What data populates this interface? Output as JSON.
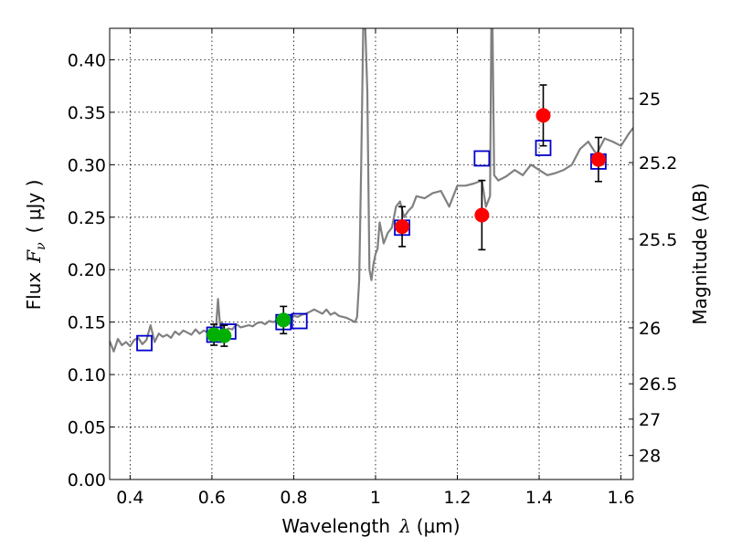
{
  "chart_data": {
    "type": "scatter",
    "xlabel_prefix": "Wavelength",
    "xlabel_symbol": "λ",
    "xlabel_unit": "(μm)",
    "ylabel_prefix": "Flux",
    "ylabel_symbol": "F",
    "ylabel_subscript": "ν",
    "ylabel_unit": "( μJy )",
    "y2label": "Magnitude (AB)",
    "xlim": [
      0.35,
      1.63
    ],
    "ylim": [
      0.0,
      0.43
    ],
    "xticks": [
      0.4,
      0.6,
      0.8,
      1.0,
      1.2,
      1.4,
      1.6
    ],
    "xtick_labels": [
      "0.4",
      "0.6",
      "0.8",
      "1",
      "1.2",
      "1.4",
      "1.6"
    ],
    "yticks": [
      0.0,
      0.05,
      0.1,
      0.15,
      0.2,
      0.25,
      0.3,
      0.35,
      0.4
    ],
    "ytick_labels": [
      "0.00",
      "0.05",
      "0.10",
      "0.15",
      "0.20",
      "0.25",
      "0.30",
      "0.35",
      "0.40"
    ],
    "y2ticks": [
      25,
      25.2,
      25.5,
      26,
      26.5,
      27,
      28
    ],
    "y2tick_labels": [
      "25",
      "25.2",
      "25.5",
      "26",
      "26.5",
      "27",
      "28"
    ],
    "mag_zeropoint": 23.9,
    "grid": true,
    "series": [
      {
        "name": "template spectrum",
        "kind": "line",
        "color": "#808080",
        "x": [
          0.35,
          0.36,
          0.37,
          0.38,
          0.39,
          0.4,
          0.41,
          0.42,
          0.43,
          0.44,
          0.45,
          0.46,
          0.47,
          0.48,
          0.49,
          0.5,
          0.51,
          0.52,
          0.53,
          0.54,
          0.55,
          0.56,
          0.57,
          0.58,
          0.59,
          0.6,
          0.61,
          0.615,
          0.62,
          0.625,
          0.63,
          0.64,
          0.65,
          0.66,
          0.67,
          0.68,
          0.69,
          0.7,
          0.71,
          0.72,
          0.73,
          0.74,
          0.75,
          0.76,
          0.77,
          0.78,
          0.79,
          0.8,
          0.81,
          0.82,
          0.83,
          0.84,
          0.85,
          0.86,
          0.87,
          0.88,
          0.89,
          0.9,
          0.91,
          0.92,
          0.93,
          0.94,
          0.95,
          0.955,
          0.96,
          0.965,
          0.97,
          0.975,
          0.98,
          0.985,
          0.99,
          0.995,
          1.0,
          1.005,
          1.01,
          1.02,
          1.03,
          1.04,
          1.05,
          1.06,
          1.07,
          1.08,
          1.09,
          1.1,
          1.12,
          1.14,
          1.16,
          1.18,
          1.2,
          1.22,
          1.24,
          1.26,
          1.27,
          1.28,
          1.283,
          1.286,
          1.29,
          1.3,
          1.32,
          1.34,
          1.36,
          1.38,
          1.4,
          1.42,
          1.44,
          1.46,
          1.48,
          1.5,
          1.52,
          1.54,
          1.56,
          1.58,
          1.6,
          1.62,
          1.63
        ],
        "y": [
          0.132,
          0.122,
          0.134,
          0.128,
          0.131,
          0.127,
          0.133,
          0.135,
          0.129,
          0.133,
          0.147,
          0.131,
          0.139,
          0.136,
          0.138,
          0.135,
          0.141,
          0.138,
          0.142,
          0.14,
          0.138,
          0.143,
          0.139,
          0.142,
          0.14,
          0.142,
          0.145,
          0.172,
          0.146,
          0.15,
          0.141,
          0.144,
          0.143,
          0.148,
          0.145,
          0.146,
          0.147,
          0.146,
          0.149,
          0.15,
          0.148,
          0.151,
          0.15,
          0.152,
          0.152,
          0.155,
          0.153,
          0.156,
          0.155,
          0.157,
          0.158,
          0.16,
          0.162,
          0.16,
          0.158,
          0.162,
          0.157,
          0.159,
          0.156,
          0.155,
          0.154,
          0.152,
          0.15,
          0.155,
          0.19,
          0.3,
          0.43,
          0.43,
          0.37,
          0.2,
          0.19,
          0.205,
          0.215,
          0.22,
          0.245,
          0.225,
          0.235,
          0.24,
          0.26,
          0.265,
          0.25,
          0.256,
          0.26,
          0.27,
          0.268,
          0.273,
          0.275,
          0.26,
          0.28,
          0.28,
          0.282,
          0.285,
          0.26,
          0.27,
          0.43,
          0.43,
          0.29,
          0.285,
          0.289,
          0.295,
          0.29,
          0.3,
          0.295,
          0.29,
          0.292,
          0.295,
          0.3,
          0.315,
          0.322,
          0.31,
          0.325,
          0.322,
          0.318,
          0.33,
          0.335
        ]
      },
      {
        "name": "red measurements",
        "kind": "points",
        "color": "#ff0000",
        "x": [
          1.065,
          1.26,
          1.41,
          1.545
        ],
        "y": [
          0.241,
          0.252,
          0.347,
          0.305
        ],
        "yerr": [
          0.019,
          0.033,
          0.029,
          0.021
        ]
      },
      {
        "name": "green measurements",
        "kind": "points",
        "color": "#00b000",
        "x": [
          0.605,
          0.63,
          0.775
        ],
        "y": [
          0.138,
          0.137,
          0.152
        ],
        "yerr": [
          0.01,
          0.01,
          0.013
        ]
      },
      {
        "name": "model photometry",
        "kind": "squares",
        "color": "#0000cc",
        "x": [
          0.435,
          0.606,
          0.64,
          0.775,
          0.814,
          1.065,
          1.26,
          1.41,
          1.545
        ],
        "y": [
          0.13,
          0.138,
          0.141,
          0.15,
          0.151,
          0.24,
          0.306,
          0.316,
          0.303
        ]
      }
    ]
  }
}
